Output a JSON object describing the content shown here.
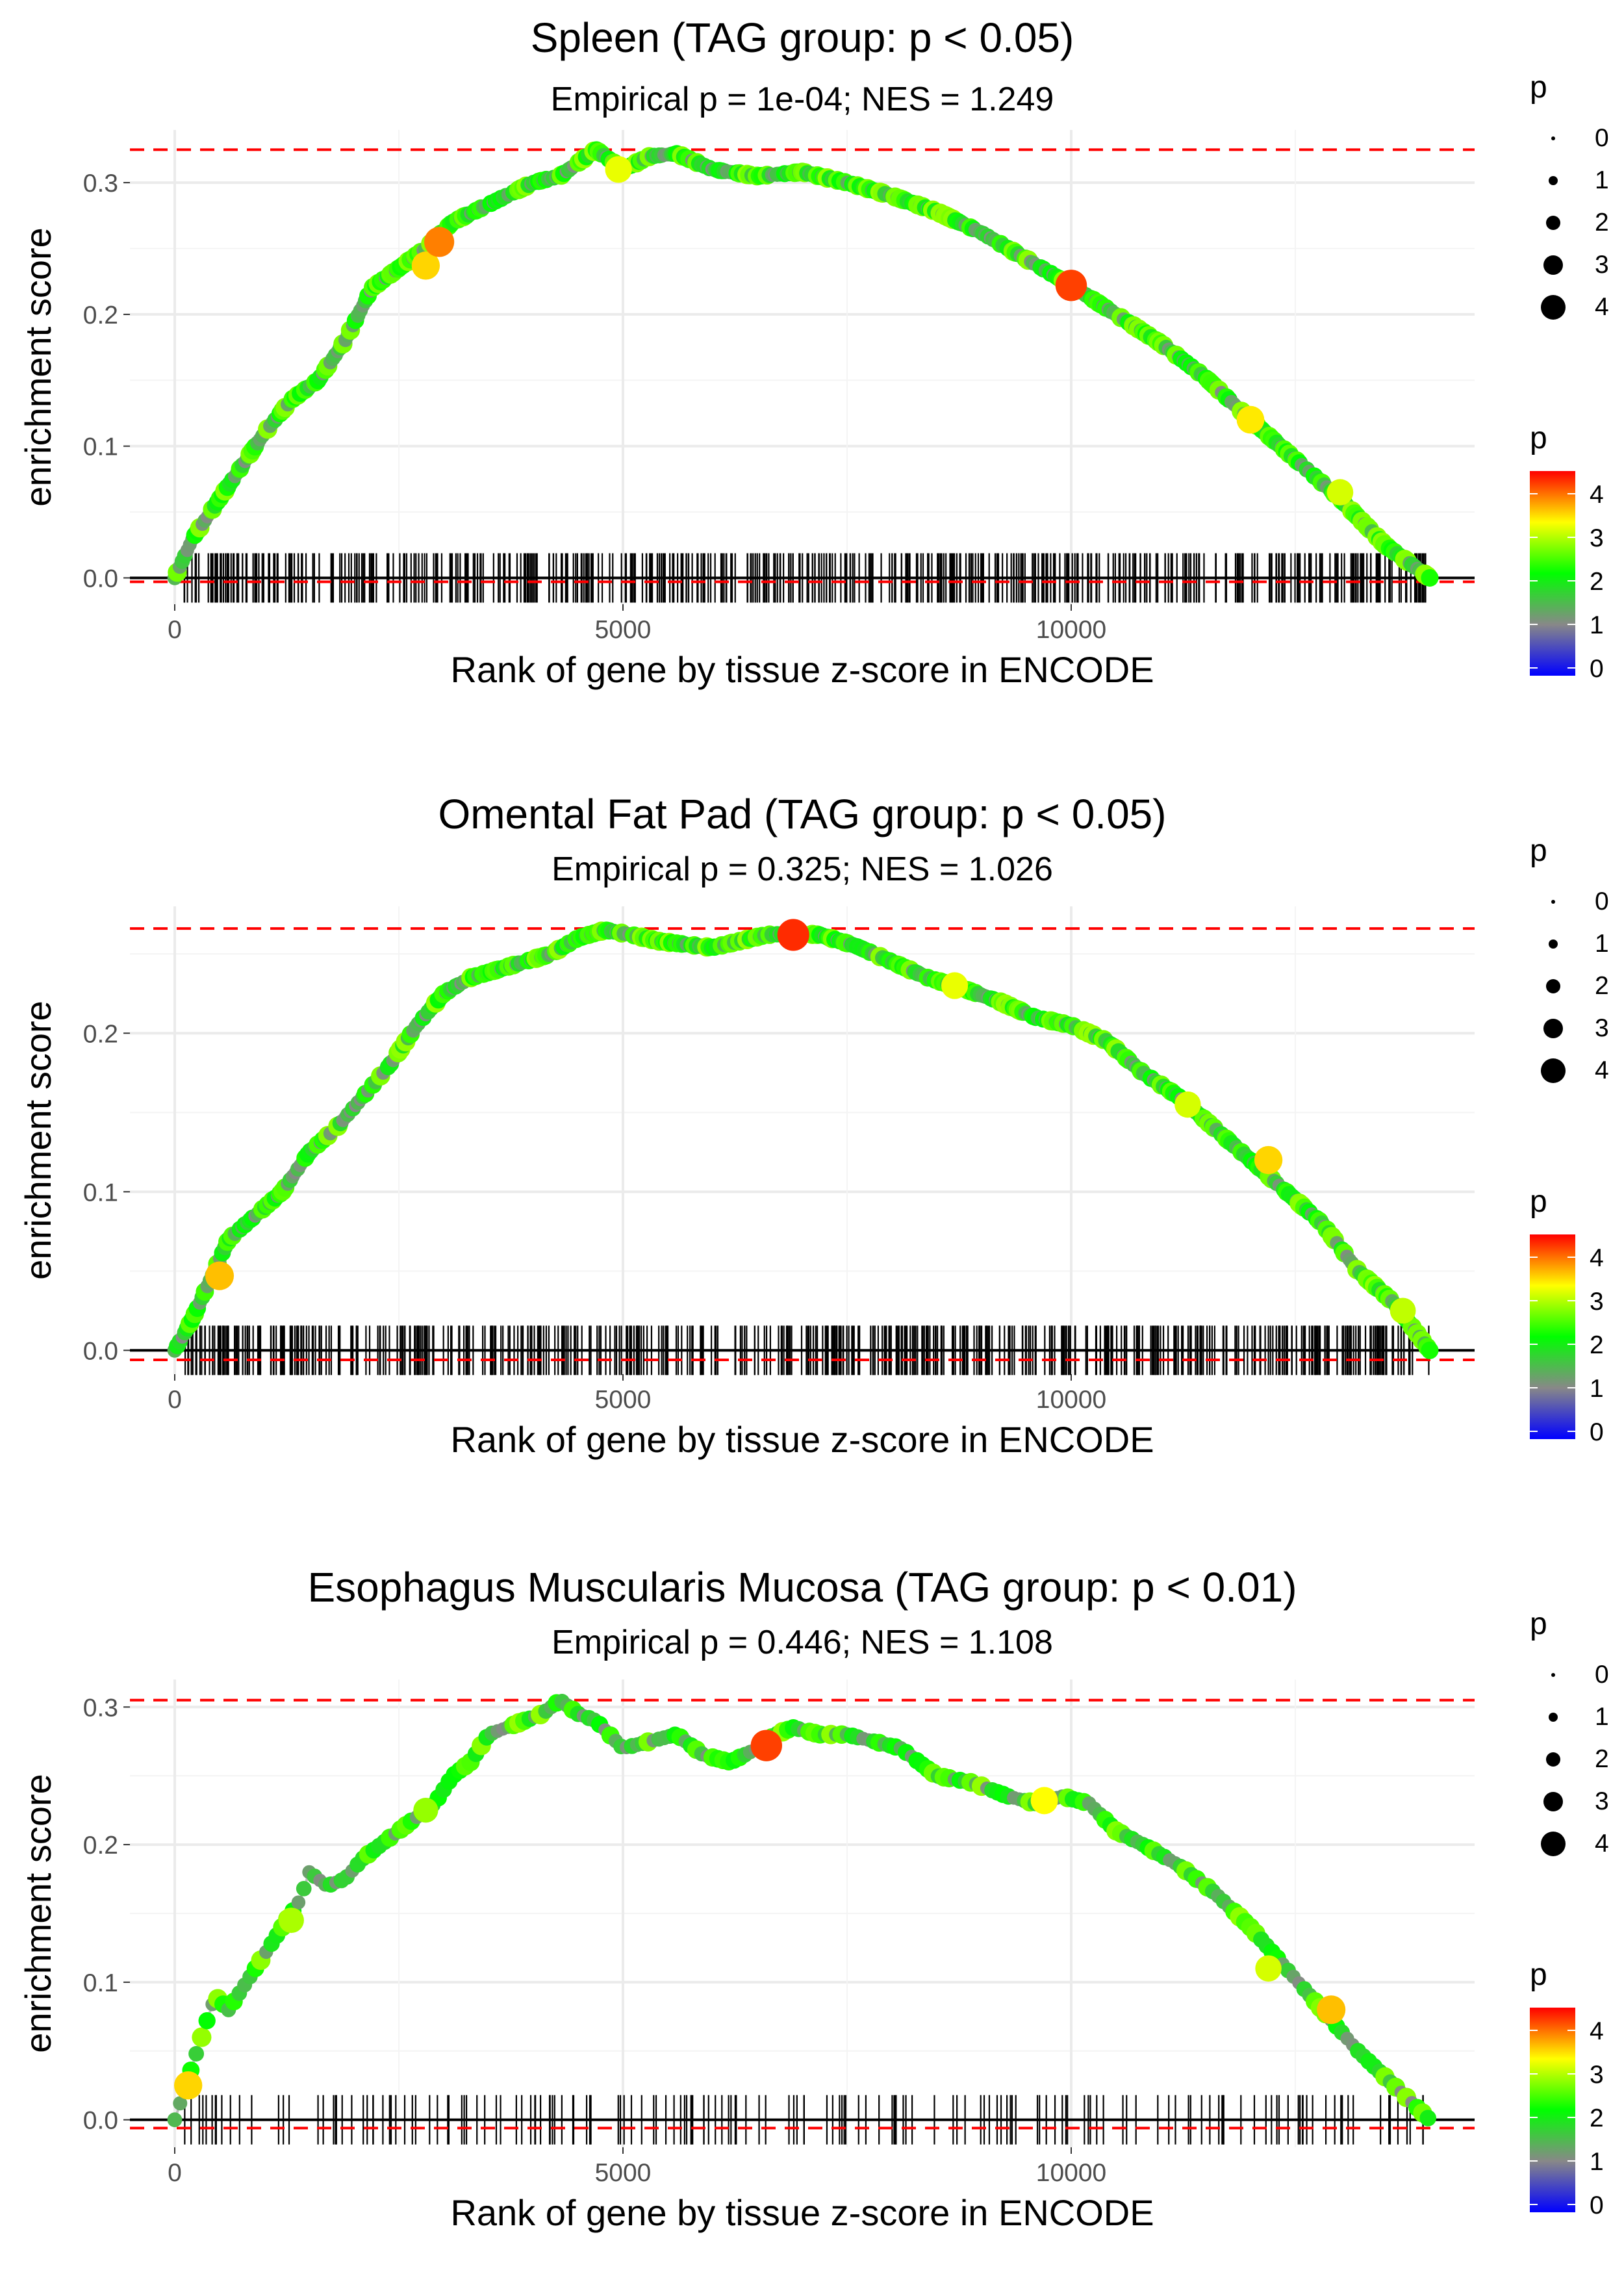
{
  "chart_data": [
    {
      "type": "line",
      "title": "Spleen (TAG group: p < 0.05)",
      "subtitle": "Empirical p = 1e-04; NES = 1.249",
      "xlabel": "Rank of gene by tissue z-score in ENCODE",
      "ylabel": "enrichment score",
      "xlim": [
        -500,
        14500
      ],
      "ylim": [
        -0.02,
        0.34
      ],
      "xticks": [
        0,
        5000,
        10000
      ],
      "xtick_labels": [
        "0",
        "5000",
        "10000"
      ],
      "yticks": [
        0,
        0.1,
        0.2,
        0.3
      ],
      "ytick_labels": [
        "0.0",
        "0.1",
        "0.2",
        "0.3"
      ],
      "hline_max": 0.325,
      "hline_min": -0.003,
      "curve": {
        "x": [
          0,
          200,
          400,
          700,
          1000,
          1300,
          1600,
          1900,
          2200,
          2500,
          2800,
          3100,
          3400,
          3700,
          4000,
          4300,
          4700,
          5000,
          5300,
          5600,
          6000,
          6500,
          7000,
          7500,
          8000,
          8500,
          9000,
          9500,
          10000,
          10500,
          11000,
          11500,
          12000,
          12500,
          13000,
          13500,
          14000
        ],
        "y": [
          0,
          0.03,
          0.05,
          0.08,
          0.11,
          0.135,
          0.15,
          0.18,
          0.22,
          0.235,
          0.25,
          0.27,
          0.28,
          0.29,
          0.3,
          0.305,
          0.325,
          0.31,
          0.32,
          0.322,
          0.31,
          0.305,
          0.308,
          0.3,
          0.29,
          0.278,
          0.262,
          0.242,
          0.222,
          0.2,
          0.178,
          0.152,
          0.12,
          0.09,
          0.06,
          0.025,
          0
        ]
      },
      "highlights": [
        {
          "x": 2800,
          "y": 0.237,
          "p": 3.8
        },
        {
          "x": 2950,
          "y": 0.255,
          "p": 4.2
        },
        {
          "x": 10000,
          "y": 0.222,
          "p": 4.5
        },
        {
          "x": 4950,
          "y": 0.31,
          "p": 3.5
        },
        {
          "x": 12000,
          "y": 0.12,
          "p": 3.7
        },
        {
          "x": 13000,
          "y": 0.065,
          "p": 3.4
        }
      ],
      "rug_density": "dense",
      "rug_count": 520,
      "rug_seed": 11
    },
    {
      "type": "line",
      "title": "Omental Fat Pad (TAG group: p < 0.05)",
      "subtitle": "Empirical p = 0.325; NES = 1.026",
      "xlabel": "Rank of gene by tissue z-score in ENCODE",
      "ylabel": "enrichment score",
      "xlim": [
        -500,
        14500
      ],
      "ylim": [
        -0.015,
        0.28
      ],
      "xticks": [
        0,
        5000,
        10000
      ],
      "xtick_labels": [
        "0",
        "5000",
        "10000"
      ],
      "yticks": [
        0,
        0.1,
        0.2
      ],
      "ytick_labels": [
        "0.0",
        "0.1",
        "0.2"
      ],
      "hline_max": 0.266,
      "hline_min": -0.006,
      "curve": {
        "x": [
          0,
          200,
          400,
          600,
          900,
          1200,
          1500,
          1800,
          2100,
          2400,
          2700,
          3000,
          3300,
          3600,
          3900,
          4200,
          4500,
          4800,
          5100,
          5400,
          5700,
          6000,
          6300,
          6600,
          6900,
          7200,
          7600,
          8000,
          8400,
          8800,
          9200,
          9600,
          10000,
          10400,
          10800,
          11200,
          11600,
          12000,
          12400,
          12800,
          13200,
          13600,
          14000
        ],
        "y": [
          0,
          0.02,
          0.045,
          0.07,
          0.085,
          0.1,
          0.125,
          0.14,
          0.16,
          0.18,
          0.205,
          0.225,
          0.235,
          0.24,
          0.245,
          0.25,
          0.26,
          0.265,
          0.262,
          0.258,
          0.256,
          0.254,
          0.258,
          0.262,
          0.263,
          0.262,
          0.255,
          0.245,
          0.235,
          0.228,
          0.22,
          0.21,
          0.205,
          0.195,
          0.175,
          0.16,
          0.14,
          0.12,
          0.1,
          0.08,
          0.05,
          0.03,
          0
        ]
      },
      "highlights": [
        {
          "x": 500,
          "y": 0.047,
          "p": 3.9
        },
        {
          "x": 6900,
          "y": 0.262,
          "p": 4.6
        },
        {
          "x": 8700,
          "y": 0.23,
          "p": 3.5
        },
        {
          "x": 11300,
          "y": 0.155,
          "p": 3.4
        },
        {
          "x": 12200,
          "y": 0.12,
          "p": 3.8
        },
        {
          "x": 13700,
          "y": 0.025,
          "p": 3.3
        }
      ],
      "rug_density": "dense",
      "rug_count": 560,
      "rug_seed": 29
    },
    {
      "type": "line",
      "title": "Esophagus Muscularis Mucosa (TAG group: p < 0.01)",
      "subtitle": "Empirical p = 0.446; NES = 1.108",
      "xlabel": "Rank of gene by tissue z-score in ENCODE",
      "ylabel": "enrichment score",
      "xlim": [
        -500,
        14500
      ],
      "ylim": [
        -0.02,
        0.32
      ],
      "xticks": [
        0,
        5000,
        10000
      ],
      "xtick_labels": [
        "0",
        "5000",
        "10000"
      ],
      "yticks": [
        0,
        0.1,
        0.2,
        0.3
      ],
      "ytick_labels": [
        "0.0",
        "0.1",
        "0.2",
        "0.3"
      ],
      "hline_max": 0.305,
      "hline_min": -0.006,
      "curve": {
        "x": [
          0,
          150,
          300,
          450,
          600,
          800,
          1000,
          1200,
          1400,
          1500,
          1700,
          1900,
          2100,
          2300,
          2500,
          2700,
          2900,
          3100,
          3300,
          3500,
          3700,
          3900,
          4100,
          4300,
          4500,
          4700,
          5000,
          5300,
          5600,
          5900,
          6200,
          6500,
          6700,
          6900,
          7200,
          7500,
          7800,
          8100,
          8500,
          8900,
          9300,
          9600,
          9900,
          10200,
          10500,
          10800,
          11200,
          11600,
          12000,
          12400,
          12800,
          13200,
          13600,
          14000
        ],
        "y": [
          0,
          0.03,
          0.06,
          0.09,
          0.08,
          0.1,
          0.12,
          0.14,
          0.16,
          0.18,
          0.17,
          0.175,
          0.19,
          0.2,
          0.21,
          0.22,
          0.23,
          0.25,
          0.26,
          0.28,
          0.285,
          0.29,
          0.295,
          0.305,
          0.295,
          0.29,
          0.27,
          0.275,
          0.28,
          0.265,
          0.26,
          0.27,
          0.28,
          0.285,
          0.28,
          0.28,
          0.275,
          0.27,
          0.25,
          0.245,
          0.235,
          0.23,
          0.235,
          0.23,
          0.21,
          0.2,
          0.185,
          0.165,
          0.14,
          0.11,
          0.08,
          0.05,
          0.025,
          0
        ]
      },
      "highlights": [
        {
          "x": 150,
          "y": 0.025,
          "p": 3.8
        },
        {
          "x": 1300,
          "y": 0.145,
          "p": 3.2
        },
        {
          "x": 2800,
          "y": 0.225,
          "p": 3.1
        },
        {
          "x": 6600,
          "y": 0.272,
          "p": 4.5
        },
        {
          "x": 9700,
          "y": 0.232,
          "p": 3.6
        },
        {
          "x": 12200,
          "y": 0.11,
          "p": 3.4
        },
        {
          "x": 12900,
          "y": 0.08,
          "p": 3.9
        }
      ],
      "rug_density": "sparse",
      "rug_count": 175,
      "rug_seed": 47
    }
  ],
  "legend": {
    "size_title": "p",
    "size_labels": [
      "0",
      "1",
      "2",
      "3",
      "4"
    ],
    "color_title": "p",
    "color_labels": [
      "0",
      "1",
      "2",
      "3",
      "4"
    ],
    "color_stops": [
      "#0000ff",
      "#888888",
      "#00ff00",
      "#ffff00",
      "#ff0000"
    ]
  },
  "colors": {
    "hline": "#ff0000",
    "grid": "#ebebeb",
    "curve": "#bebebe"
  }
}
